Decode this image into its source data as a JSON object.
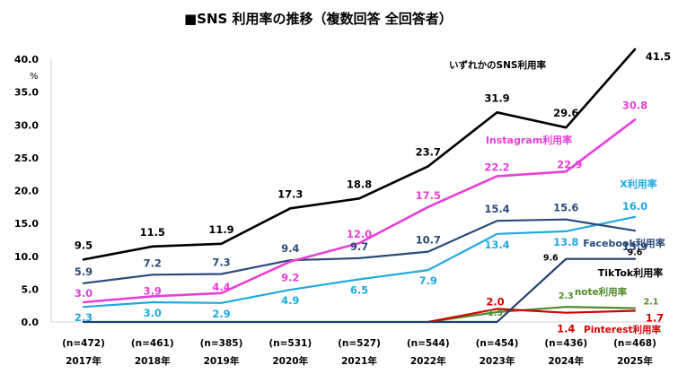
{
  "chart_data": {
    "type": "line",
    "title": "■SNS 利用率の推移（複数回答 全回答者）",
    "ylabel": "%",
    "ylim": [
      0,
      40
    ],
    "yticks": [
      "0.0",
      "5.0",
      "10.0",
      "15.0",
      "20.0",
      "25.0",
      "30.0",
      "35.0",
      "40.0"
    ],
    "categories": [
      "2017年",
      "2018年",
      "2019年",
      "2020年",
      "2021年",
      "2022年",
      "2023年",
      "2024年",
      "2025年"
    ],
    "sample_sizes": [
      "(n=472)",
      "(n=461)",
      "(n=385)",
      "(n=531)",
      "(n=527)",
      "(n=544)",
      "(n=454)",
      "(n=436)",
      "(n=468)"
    ],
    "series": [
      {
        "name": "いずれかのSNS利用率",
        "color": "#000000",
        "values": [
          9.5,
          11.5,
          11.9,
          17.3,
          18.8,
          23.7,
          31.9,
          29.6,
          41.5
        ],
        "labels": [
          "9.5",
          "11.5",
          "11.9",
          "17.3",
          "18.8",
          "23.7",
          "31.9",
          "29.6",
          "41.5"
        ]
      },
      {
        "name": "Instagram利用率",
        "color": "#e83fd6",
        "values": [
          3.0,
          3.9,
          4.4,
          9.2,
          12.0,
          17.5,
          22.2,
          22.9,
          30.8
        ],
        "labels": [
          "3.0",
          "3.9",
          "4.4",
          "9.2",
          "12.0",
          "17.5",
          "22.2",
          "22.9",
          "30.8"
        ]
      },
      {
        "name": "Facebook利用率",
        "color": "#2a4b7a",
        "values": [
          5.9,
          7.2,
          7.3,
          9.4,
          9.7,
          10.7,
          15.4,
          15.6,
          13.9
        ],
        "labels": [
          "5.9",
          "7.2",
          "7.3",
          "9.4",
          "9.7",
          "10.7",
          "15.4",
          "15.6",
          "13.9"
        ]
      },
      {
        "name": "X利用率",
        "color": "#1fa9e0",
        "values": [
          2.3,
          3.0,
          2.9,
          4.9,
          6.5,
          7.9,
          13.4,
          13.8,
          16.0
        ],
        "labels": [
          "2.3",
          "3.0",
          "2.9",
          "4.9",
          "6.5",
          "7.9",
          "13.4",
          "13.8",
          "16.0"
        ]
      },
      {
        "name": "TikTok利用率",
        "color": "#1f3f6e",
        "values": [
          0,
          0,
          0,
          0,
          0,
          0,
          0,
          9.6,
          9.6
        ],
        "labels": [
          null,
          null,
          null,
          null,
          null,
          null,
          null,
          "9.6",
          "9.6"
        ]
      },
      {
        "name": "note利用率",
        "color": "#4f8a2c",
        "values": [
          null,
          null,
          null,
          null,
          null,
          0,
          1.5,
          2.3,
          2.1
        ],
        "labels": [
          null,
          null,
          null,
          null,
          null,
          null,
          "1.5",
          "2.3",
          "2.1"
        ]
      },
      {
        "name": "Pinterest利用率",
        "color": "#d40000",
        "values": [
          null,
          null,
          null,
          null,
          null,
          0,
          2.0,
          1.4,
          1.7
        ],
        "labels": [
          null,
          null,
          null,
          null,
          null,
          null,
          "2.0",
          "1.4",
          "1.7"
        ]
      }
    ]
  }
}
